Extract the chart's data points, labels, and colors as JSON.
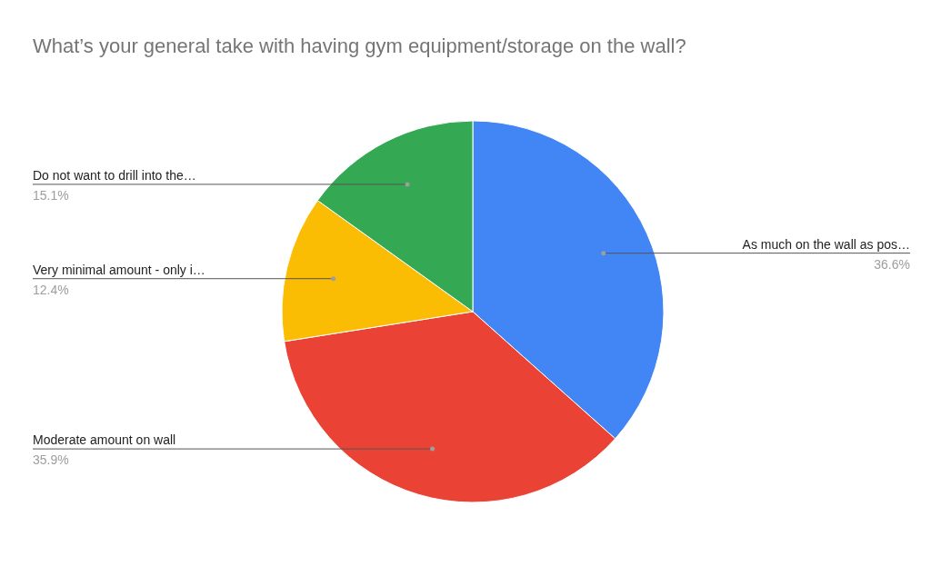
{
  "chart_data": {
    "type": "pie",
    "title": "What’s your general take with having gym equipment/storage on the wall?",
    "categories": [
      "As much on the wall as pos…",
      "Moderate amount on wall",
      "Very minimal amount - only i…",
      "Do not want to drill into the…"
    ],
    "values": [
      36.6,
      35.9,
      12.4,
      15.1
    ],
    "colors": [
      "#4285f4",
      "#ea4335",
      "#fbbc04",
      "#34a853"
    ],
    "value_labels": [
      "36.6%",
      "35.9%",
      "12.4%",
      "15.1%"
    ]
  }
}
